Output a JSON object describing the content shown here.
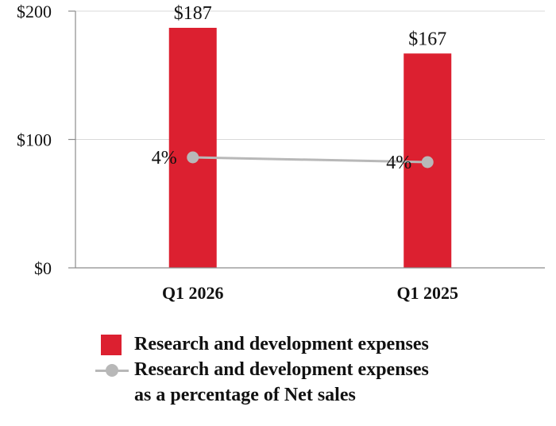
{
  "chart_data": {
    "type": "bar",
    "categories": [
      "Q1 2026",
      "Q1 2025"
    ],
    "y_ticks": [
      "$0",
      "$100",
      "$200"
    ],
    "ylim": [
      0,
      200
    ],
    "grid": true,
    "series": [
      {
        "name": "Research and development expenses",
        "type": "bar",
        "values": [
          187,
          167
        ],
        "labels": [
          "$187",
          "$167"
        ],
        "color": "#dc2030"
      },
      {
        "name": "Research and development expenses as a percentage of Net sales",
        "type": "line",
        "values": [
          4,
          4
        ],
        "labels": [
          "4%",
          "4%"
        ],
        "color": "#b8b8b8"
      }
    ],
    "legend": {
      "placement": "bottom",
      "bar_label": "Research and development expenses",
      "line_label_1": "Research and development expenses",
      "line_label_2": "as a percentage of Net sales"
    }
  }
}
